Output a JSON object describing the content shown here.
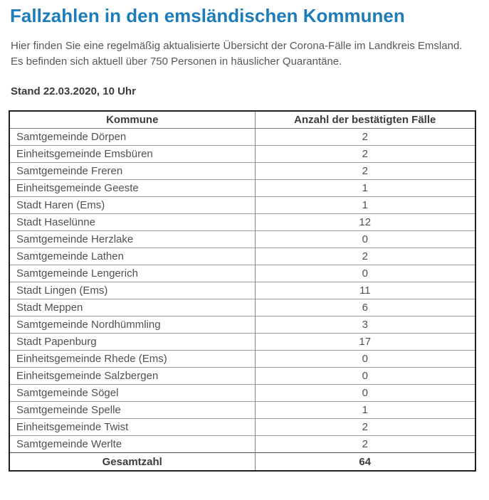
{
  "page": {
    "title": "Fallzahlen in den emsländischen Kommunen",
    "intro_line1": "Hier finden Sie eine regelmäßig aktualisierte Übersicht der Corona-Fälle im Landkreis Emsland.",
    "intro_line2": "Es befinden sich aktuell über 750 Personen in häuslicher Quarantäne.",
    "stand": "Stand 22.03.2020, 10 Uhr"
  },
  "colors": {
    "title_blue": "#1e7cb8",
    "body_text": "#57585b",
    "table_text": "#505154",
    "outer_border": "#1f1f1f",
    "inner_border": "#a3a3a3"
  },
  "table": {
    "headers": [
      "Kommune",
      "Anzahl der bestätigten Fälle"
    ],
    "rows": [
      {
        "kommune": "Samtgemeinde Dörpen",
        "faelle": "2"
      },
      {
        "kommune": "Einheitsgemeinde Emsbüren",
        "faelle": "2"
      },
      {
        "kommune": "Samtgemeinde Freren",
        "faelle": "2"
      },
      {
        "kommune": "Einheitsgemeinde Geeste",
        "faelle": "1"
      },
      {
        "kommune": "Stadt Haren (Ems)",
        "faelle": "1"
      },
      {
        "kommune": "Stadt Haselünne",
        "faelle": "12"
      },
      {
        "kommune": "Samtgemeinde Herzlake",
        "faelle": "0"
      },
      {
        "kommune": "Samtgemeinde Lathen",
        "faelle": "2"
      },
      {
        "kommune": "Samtgemeinde Lengerich",
        "faelle": "0"
      },
      {
        "kommune": "Stadt Lingen (Ems)",
        "faelle": "11"
      },
      {
        "kommune": "Stadt Meppen",
        "faelle": "6"
      },
      {
        "kommune": "Samtgemeinde Nordhümmling",
        "faelle": "3"
      },
      {
        "kommune": "Stadt Papenburg",
        "faelle": "17"
      },
      {
        "kommune": "Einheitsgemeinde Rhede (Ems)",
        "faelle": "0"
      },
      {
        "kommune": "Einheitsgemeinde Salzbergen",
        "faelle": "0"
      },
      {
        "kommune": "Samtgemeinde Sögel",
        "faelle": "0"
      },
      {
        "kommune": "Samtgemeinde Spelle",
        "faelle": "1"
      },
      {
        "kommune": "Einheitsgemeinde Twist",
        "faelle": "2"
      },
      {
        "kommune": "Samtgemeinde Werlte",
        "faelle": "2"
      }
    ],
    "footer": {
      "label": "Gesamtzahl",
      "total": "64"
    }
  }
}
